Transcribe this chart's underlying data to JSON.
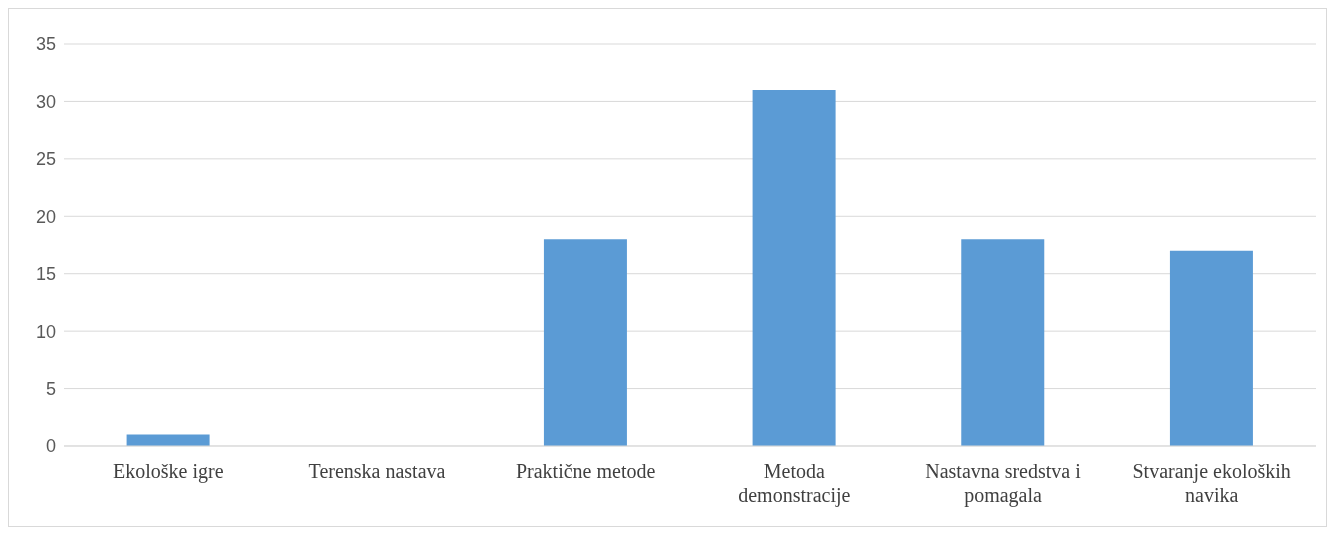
{
  "chart_data": {
    "type": "bar",
    "categories": [
      "Ekološke igre",
      "Terenska nastava",
      "Praktične metode",
      "Metoda demonstracije",
      "Nastavna sredstva i pomagala",
      "Stvaranje ekoloških navika"
    ],
    "values": [
      1,
      0,
      18,
      31,
      18,
      17
    ],
    "color": "#5b9bd5",
    "ylim": [
      0,
      35
    ],
    "yticks": [
      0,
      5,
      10,
      15,
      20,
      25,
      30,
      35
    ],
    "grid": "y",
    "legend": false
  }
}
